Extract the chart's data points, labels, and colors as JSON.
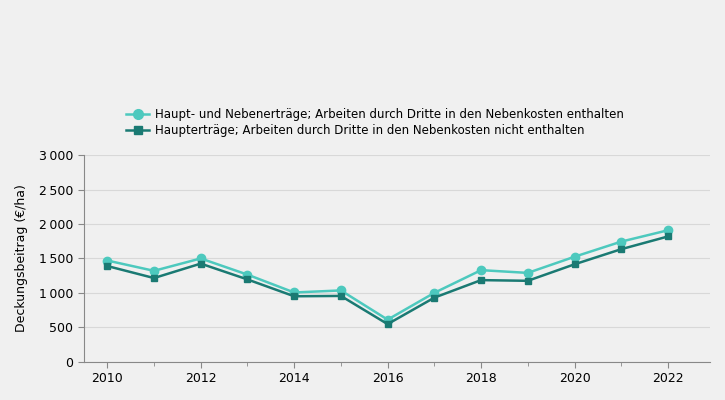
{
  "years": [
    2010,
    2011,
    2012,
    2013,
    2014,
    2015,
    2016,
    2017,
    2018,
    2019,
    2020,
    2021,
    2022
  ],
  "series1": [
    1470,
    1320,
    1500,
    1265,
    1005,
    1035,
    610,
    1000,
    1330,
    1290,
    1525,
    1745,
    1910
  ],
  "series2": [
    1390,
    1215,
    1425,
    1195,
    950,
    955,
    545,
    930,
    1185,
    1175,
    1415,
    1635,
    1820
  ],
  "color1": "#4DC9BE",
  "color2": "#1A7A73",
  "marker1": "o",
  "marker2": "s",
  "label1": "Haupt- und Nebenerträge; Arbeiten durch Dritte in den Nebenkosten enthalten",
  "label2": "Haupterträge; Arbeiten durch Dritte in den Nebenkosten nicht enthalten",
  "ylabel": "Deckungsbeitrag (€/ha)",
  "ylim": [
    0,
    3000
  ],
  "yticks": [
    0,
    500,
    1000,
    1500,
    2000,
    2500,
    3000
  ],
  "xticks_major": [
    2010,
    2012,
    2014,
    2016,
    2018,
    2020,
    2022
  ],
  "xticks_minor": [
    2011,
    2013,
    2015,
    2017,
    2019,
    2021
  ],
  "background_color": "#f0f0f0",
  "plot_bg_color": "#f0f0f0",
  "grid_color": "#d8d8d8",
  "linewidth": 1.8,
  "markersize": 6
}
